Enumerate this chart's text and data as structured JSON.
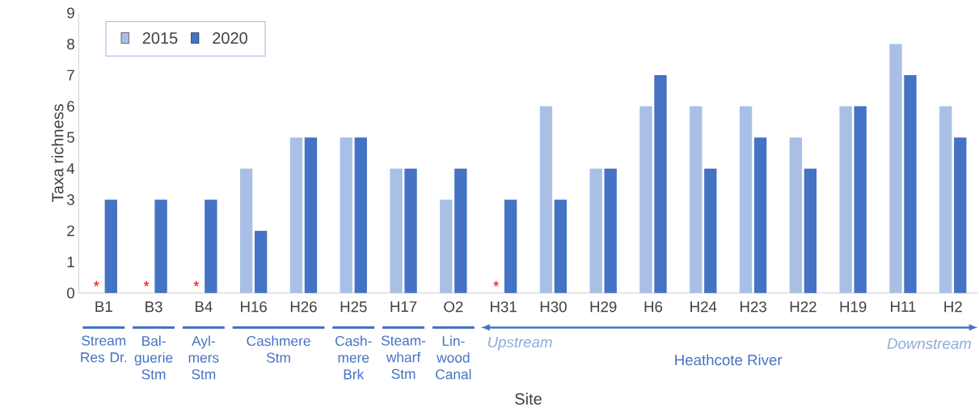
{
  "chart_data": {
    "type": "bar",
    "xlabel": "Site",
    "ylabel": "Taxa richness",
    "categories": [
      "B1",
      "B3",
      "B4",
      "H16",
      "H26",
      "H25",
      "H17",
      "O2",
      "H31",
      "H30",
      "H29",
      "H6",
      "H24",
      "H23",
      "H22",
      "H19",
      "H11",
      "H2"
    ],
    "series": [
      {
        "name": "2015",
        "color": "#a9bfe6",
        "values": [
          null,
          null,
          null,
          4,
          5,
          5,
          4,
          3,
          null,
          6,
          4,
          6,
          6,
          6,
          5,
          6,
          8,
          6
        ]
      },
      {
        "name": "2020",
        "color": "#4472c4",
        "values": [
          3,
          3,
          3,
          2,
          5,
          5,
          4,
          4,
          3,
          3,
          4,
          7,
          4,
          5,
          4,
          6,
          7,
          5
        ]
      }
    ],
    "ylim": [
      0,
      9
    ],
    "yticks": [
      0,
      1,
      2,
      3,
      4,
      5,
      6,
      7,
      8,
      9
    ],
    "legend": "top left",
    "annotations": [
      {
        "text": "*",
        "x": "B1",
        "y": 0
      },
      {
        "text": "*",
        "x": "B3",
        "y": 0
      },
      {
        "text": "*",
        "x": "B4",
        "y": 0
      },
      {
        "text": "*",
        "x": "H31",
        "y": 0
      },
      "Stream Res Dr.",
      "Bal-guerie Stm",
      "Ayl-mers Stm",
      "Cashmere Stm",
      "Cash-mere Brk",
      "Steam-wharf Stm",
      "Lin-wood Canal",
      "Upstream",
      "Heathcote River",
      "Downstream"
    ]
  }
}
